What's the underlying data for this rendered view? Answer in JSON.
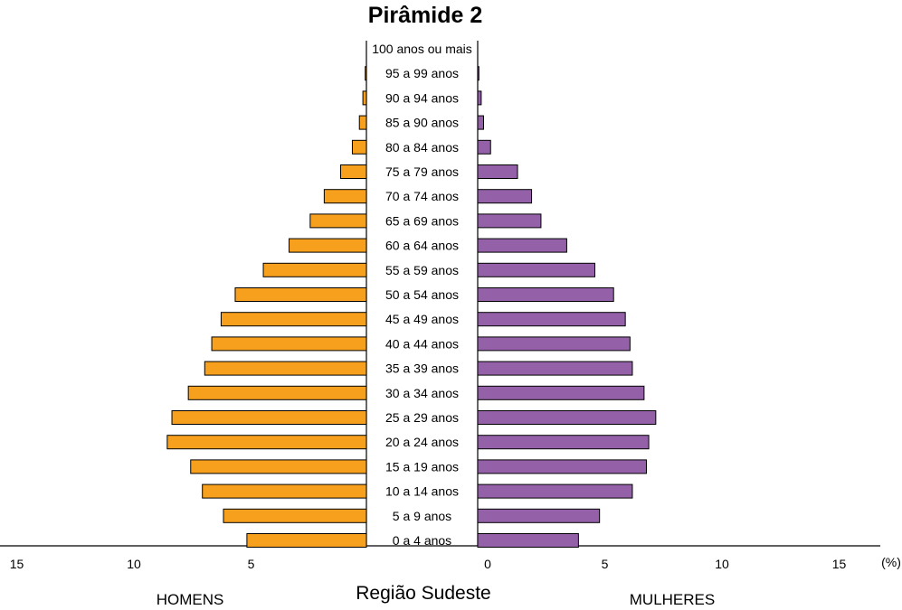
{
  "chart_data": {
    "type": "bar",
    "title": "Pirâmide 2",
    "subtitle": "Região Sudeste",
    "unit": "(%)",
    "categories": [
      "100 anos ou mais",
      "95 a 99 anos",
      "90 a 94 anos",
      "85 a 90 anos",
      "80 a 84 anos",
      "75 a 79 anos",
      "70 a 74 anos",
      "65 a 69 anos",
      "60 a 64 anos",
      "55 a 59 anos",
      "50 a 54 anos",
      "45 a 49 anos",
      "40 a 44 anos",
      "35 a 39 anos",
      "30 a 34 anos",
      "25 a 29 anos",
      "20 a 24 anos",
      "15 a 19 anos",
      "10 a 14 anos",
      "5 a 9 anos",
      "0 a 4 anos"
    ],
    "series": [
      {
        "name": "HOMENS",
        "color": "#F7A01D",
        "values": [
          0.0,
          0.05,
          0.15,
          0.3,
          0.6,
          1.1,
          1.8,
          2.4,
          3.3,
          4.4,
          5.6,
          6.2,
          6.6,
          6.9,
          7.6,
          8.3,
          8.5,
          7.5,
          7.0,
          6.1,
          5.1
        ]
      },
      {
        "name": "MULHERES",
        "color": "#9461A8",
        "values": [
          0.0,
          0.05,
          0.15,
          0.25,
          0.55,
          1.7,
          2.3,
          2.7,
          3.8,
          5.0,
          5.8,
          6.3,
          6.5,
          6.6,
          7.1,
          7.6,
          7.3,
          7.2,
          6.6,
          5.2,
          4.3
        ]
      }
    ],
    "xticks_left": [
      "15",
      "10",
      "5"
    ],
    "xticks_right": [
      "0",
      "5",
      "10",
      "15"
    ],
    "xlim": [
      0,
      15
    ],
    "grid": false,
    "legend": "none"
  }
}
